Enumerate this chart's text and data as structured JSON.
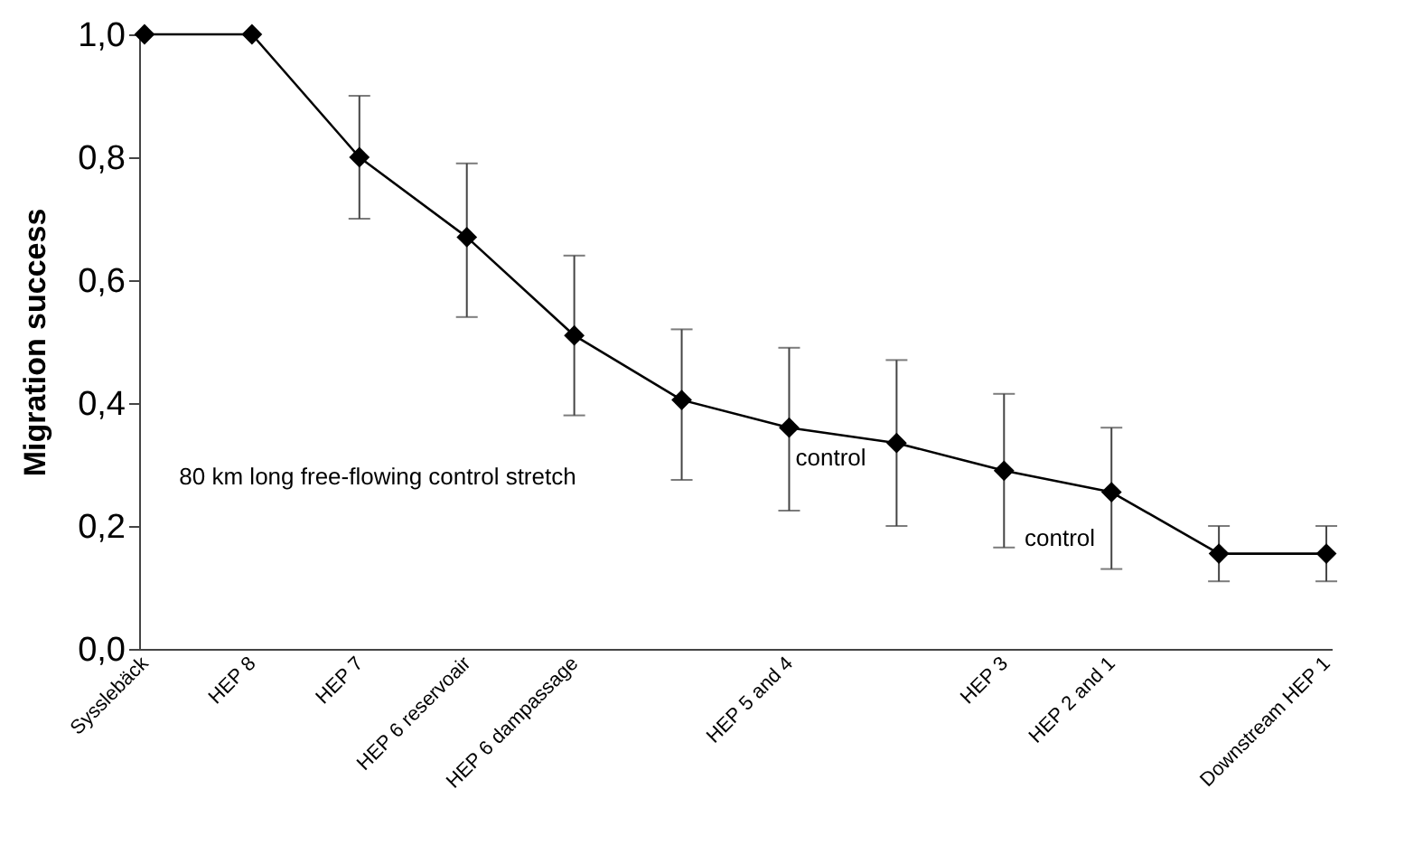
{
  "chart_data": {
    "type": "line",
    "ylabel": "Migration success",
    "categories": [
      "Sysslebäck",
      "HEP 8",
      "HEP 7",
      "HEP 6 reservoair",
      "HEP 6 dampassage",
      null,
      "HEP 5 and 4",
      null,
      "HEP 3",
      "HEP 2 and 1",
      null,
      "Downstream HEP 1"
    ],
    "series": [
      {
        "color": "#000000",
        "values": [
          1.0,
          1.0,
          0.8,
          0.67,
          0.51,
          0.405,
          0.36,
          0.335,
          0.29,
          0.255,
          0.155,
          0.155
        ],
        "errors": [
          null,
          null,
          [
            0.7,
            0.9
          ],
          [
            0.54,
            0.79
          ],
          [
            0.38,
            0.64
          ],
          [
            0.275,
            0.52
          ],
          [
            0.225,
            0.49
          ],
          [
            0.2,
            0.47
          ],
          [
            0.165,
            0.415
          ],
          [
            0.13,
            0.36
          ],
          [
            0.11,
            0.2
          ],
          [
            0.11,
            0.2
          ]
        ]
      }
    ],
    "ylim": [
      0,
      1
    ],
    "yticks": [
      {
        "value": 0,
        "label": "0,0"
      },
      {
        "value": 0.2,
        "label": "0,2"
      },
      {
        "value": 0.4,
        "label": "0,4"
      },
      {
        "value": 0.6,
        "label": "0,6"
      },
      {
        "value": 0.8,
        "label": "0,8"
      },
      {
        "value": 1,
        "label": "1,0"
      }
    ],
    "marker": "diamond",
    "line_style": "solid",
    "annotations": [
      "80 km long free-flowing control stretch",
      "control",
      "control"
    ]
  }
}
